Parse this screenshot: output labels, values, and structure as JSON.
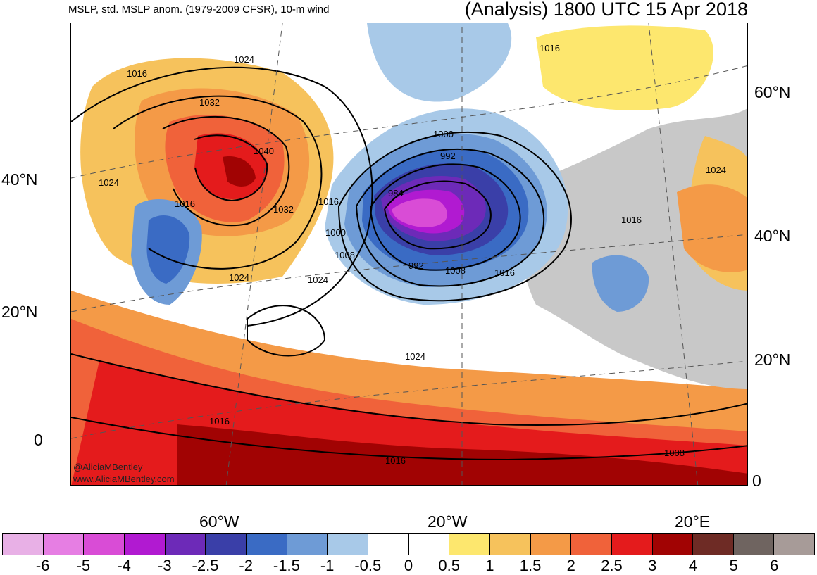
{
  "header": {
    "left": "MSLP, std. MSLP anom. (1979-2009 CFSR), 10-m wind",
    "right": "(Analysis) 1800 UTC 15 Apr 2018"
  },
  "map": {
    "lat_left": [
      "40°N",
      "20°N",
      "0"
    ],
    "lat_right": [
      "60°N",
      "40°N",
      "20°N",
      "0"
    ],
    "lon": [
      "60°W",
      "20°W",
      "20°E"
    ],
    "isobar_labels": [
      "1016",
      "1024",
      "1032",
      "1040",
      "1024",
      "1016",
      "1032",
      "1016",
      "1024",
      "1024",
      "1000",
      "992",
      "984",
      "1000",
      "1008",
      "992",
      "1008",
      "1016",
      "1024",
      "1016",
      "1016",
      "1008",
      "1016",
      "1024",
      "1016"
    ],
    "credit": [
      "@AliciaMBentley",
      "www.AliciaMBentley.com"
    ]
  },
  "colorbar": {
    "colors": [
      "#e8b0e6",
      "#e67ee3",
      "#d94cd6",
      "#b11ad1",
      "#6d2ab8",
      "#3a3fa8",
      "#3a6bc4",
      "#6e9bd6",
      "#a8c9e8",
      "#ffffff",
      "#ffffff",
      "#fde76e",
      "#f6c25c",
      "#f49a47",
      "#f0623a",
      "#e41b1c",
      "#a10303",
      "#6e2b25",
      "#6f6460",
      "#a79b98"
    ],
    "labels": [
      "-6",
      "-5",
      "-4",
      "-3",
      "-2.5",
      "-2",
      "-1.5",
      "-1",
      "-0.5",
      "0",
      "0.5",
      "1",
      "1.5",
      "2",
      "2.5",
      "3",
      "4",
      "5",
      "6"
    ]
  }
}
